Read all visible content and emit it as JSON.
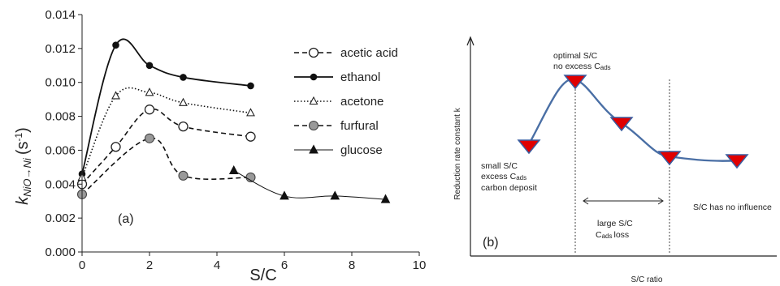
{
  "chart_data": [
    {
      "panel": "(a)",
      "type": "line",
      "xlabel": "S/C",
      "ylabel_main": "k",
      "ylabel_sub": "NiO→Ni",
      "ylabel_unit": "(s",
      "ylabel_unit_sup": "-1",
      "ylabel_unit_end": ")",
      "xlim": [
        0,
        10
      ],
      "ylim": [
        0,
        0.014
      ],
      "x_ticks": [
        "0",
        "2",
        "4",
        "6",
        "8",
        "10"
      ],
      "y_ticks": [
        "0.000",
        "0.002",
        "0.004",
        "0.006",
        "0.008",
        "0.010",
        "0.012",
        "0.014"
      ],
      "legend_position": "right",
      "grid": false,
      "series": [
        {
          "name": "acetic acid",
          "line": "dashed",
          "marker": "open-circle",
          "x": [
            0,
            1,
            2,
            3,
            5
          ],
          "y": [
            0.004,
            0.0062,
            0.0084,
            0.0074,
            0.0068
          ]
        },
        {
          "name": "ethanol",
          "line": "solid",
          "marker": "filled-circle",
          "x": [
            0,
            1,
            2,
            3,
            5
          ],
          "y": [
            0.0046,
            0.0122,
            0.011,
            0.0103,
            0.0098
          ]
        },
        {
          "name": "acetone",
          "line": "dotted",
          "marker": "open-triangle",
          "x": [
            0,
            1,
            2,
            3,
            5
          ],
          "y": [
            0.0044,
            0.0092,
            0.0094,
            0.0088,
            0.0082
          ]
        },
        {
          "name": "furfural",
          "line": "dashed",
          "marker": "gray-circle",
          "x": [
            0,
            2,
            3,
            5
          ],
          "y": [
            0.0034,
            0.0067,
            0.0045,
            0.0044
          ]
        },
        {
          "name": "glucose",
          "line": "thin-solid",
          "marker": "filled-triangle",
          "x": [
            4.5,
            6,
            7.5,
            9
          ],
          "y": [
            0.0048,
            0.0033,
            0.0033,
            0.0031
          ]
        }
      ]
    },
    {
      "panel": "(b)",
      "type": "line",
      "xlabel": "S/C ratio",
      "ylabel": "Reduction rate constant k",
      "grid": false,
      "notes": {
        "small": [
          "small S/C",
          "excess C",
          "carbon deposit"
        ],
        "small_sub": "ads",
        "optimal": [
          "optimal S/C",
          "no excess C"
        ],
        "optimal_sub": "ads",
        "large": [
          "large S/C",
          "C",
          "loss"
        ],
        "large_sub": "ads",
        "no_influence": "S/C has no influence"
      }
    }
  ],
  "colors": {
    "curve_b": "#4a6fa5",
    "marker_b": "#e00000",
    "marker_b_edge": "#3a5da0",
    "furfural_fill": "#999999",
    "axis": "#222222"
  }
}
